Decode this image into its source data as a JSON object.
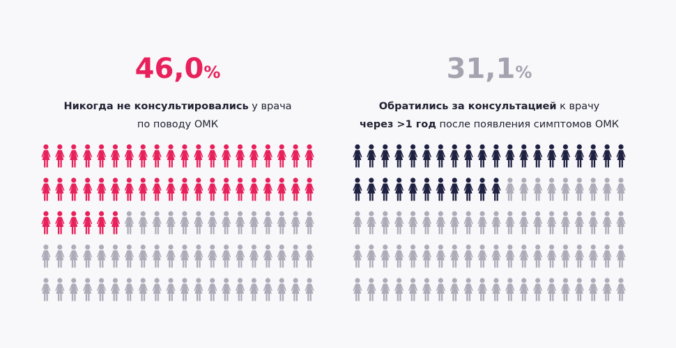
{
  "chart_data": [
    {
      "type": "pictogram",
      "value": 46.0,
      "value_labels": [
        "46,0"
      ],
      "unit_label": "%",
      "label_color": "#e8205b",
      "color": "#e8205b",
      "rest_color": "#aeacb8",
      "description": [
        [
          {
            "text": "Никогда не консультировались",
            "bold": true
          },
          {
            "text": " у врача",
            "bold": false
          }
        ],
        [
          {
            "text": "по поводу ОМК",
            "bold": false
          }
        ]
      ]
    },
    {
      "type": "pictogram",
      "value": 31.1,
      "value_labels": [
        "31,1"
      ],
      "unit_label": "%",
      "label_color": "#a6a3b0",
      "color": "#1f2142",
      "rest_color": "#aeacb8",
      "description": [
        [
          {
            "text": "Обратились за консультацией",
            "bold": true
          },
          {
            "text": " к врачу",
            "bold": false
          }
        ],
        [
          {
            "text": "через >1 год",
            "bold": true
          },
          {
            "text": " после появления симптомов ОМК",
            "bold": false
          }
        ]
      ]
    }
  ]
}
